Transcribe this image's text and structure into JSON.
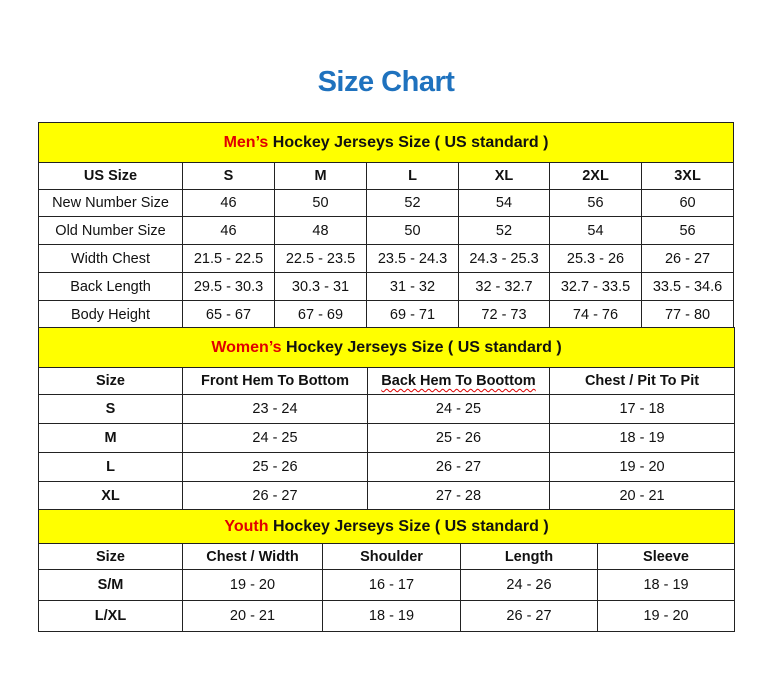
{
  "title": "Size Chart",
  "colors": {
    "title": "#1f72be",
    "section_header_bg": "#ffff00",
    "accent_red": "#e00000"
  },
  "men": {
    "header_highlight": "Men’s",
    "header_rest": " Hockey Jerseys Size ( US standard )",
    "columns": [
      "US Size",
      "S",
      "M",
      "L",
      "XL",
      "2XL",
      "3XL"
    ],
    "rows": [
      [
        "New Number Size",
        "46",
        "50",
        "52",
        "54",
        "56",
        "60"
      ],
      [
        "Old Number Size",
        "46",
        "48",
        "50",
        "52",
        "54",
        "56"
      ],
      [
        "Width Chest",
        "21.5 - 22.5",
        "22.5 - 23.5",
        "23.5 - 24.3",
        "24.3 - 25.3",
        "25.3 - 26",
        "26 - 27"
      ],
      [
        "Back Length",
        "29.5 - 30.3",
        "30.3 - 31",
        "31 - 32",
        "32 - 32.7",
        "32.7 - 33.5",
        "33.5 - 34.6"
      ],
      [
        "Body Height",
        "65 - 67",
        "67 - 69",
        "69 - 71",
        "72 - 73",
        "74 - 76",
        "77 - 80"
      ]
    ]
  },
  "women": {
    "header_highlight": "Women’s",
    "header_rest": " Hockey Jerseys Size ( US standard )",
    "columns": [
      "Size",
      "Front Hem To Bottom",
      "Back Hem To Boottom",
      "Chest / Pit To Pit"
    ],
    "rows": [
      [
        "S",
        "23 - 24",
        "24 - 25",
        "17 - 18"
      ],
      [
        "M",
        "24 - 25",
        "25 - 26",
        "18 - 19"
      ],
      [
        "L",
        "25 - 26",
        "26 - 27",
        "19 - 20"
      ],
      [
        "XL",
        "26 - 27",
        "27 - 28",
        "20 - 21"
      ]
    ]
  },
  "youth": {
    "header_highlight": "Youth",
    "header_rest": " Hockey Jerseys Size ( US standard )",
    "columns": [
      "Size",
      "Chest / Width",
      "Shoulder",
      "Length",
      "Sleeve"
    ],
    "rows": [
      [
        "S/M",
        "19 - 20",
        "16 - 17",
        "24 - 26",
        "18 - 19"
      ],
      [
        "L/XL",
        "20 - 21",
        "18 - 19",
        "26 - 27",
        "19 - 20"
      ]
    ]
  }
}
